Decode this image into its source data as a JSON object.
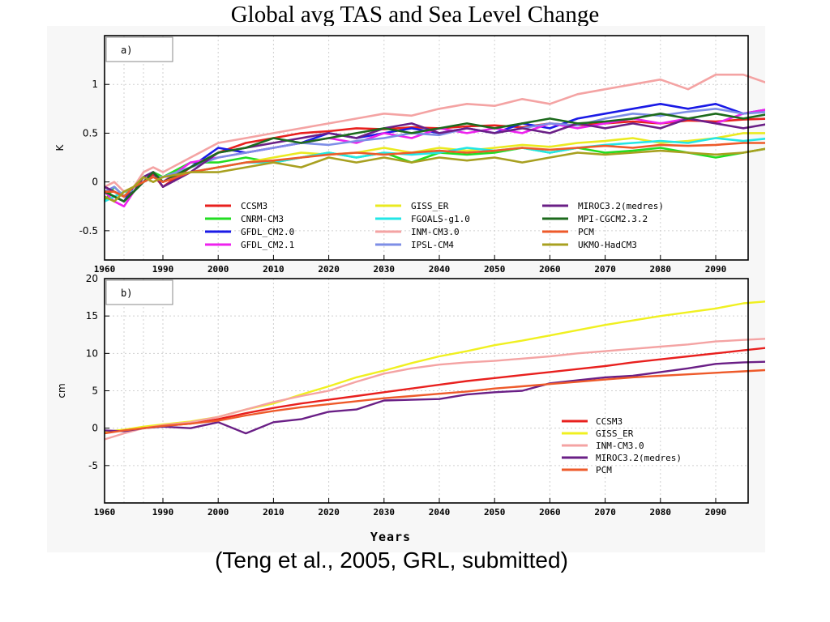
{
  "page": {
    "title": "Global avg TAS and Sea Level Change",
    "citation": "(Teng et al., 2005, GRL, submitted)"
  },
  "chart_data": [
    {
      "type": "line",
      "panel_label": "a)",
      "xlabel": "",
      "ylabel": "K",
      "xlim": [
        1960,
        2100
      ],
      "ylim": [
        -0.8,
        1.5
      ],
      "xticks": [
        "1960",
        "1990",
        "2000",
        "2010",
        "2020",
        "2030",
        "2040",
        "2050",
        "2060",
        "2070",
        "2080",
        "2090"
      ],
      "yticks": [
        "1",
        "0.5",
        "0",
        "-0.5"
      ],
      "grid": true,
      "legend_position": "bottom-center",
      "x": [
        1960,
        1965,
        1970,
        1975,
        1980,
        1985,
        1990,
        1995,
        2000,
        2005,
        2010,
        2015,
        2020,
        2025,
        2030,
        2035,
        2040,
        2045,
        2050,
        2055,
        2060,
        2065,
        2070,
        2075,
        2080,
        2085,
        2090,
        2095,
        2100
      ],
      "series": [
        {
          "name": "CCSM3",
          "color": "#e8201e",
          "values": [
            -0.05,
            -0.1,
            -0.15,
            -0.1,
            0.0,
            0.08,
            -0.05,
            0.15,
            0.3,
            0.4,
            0.45,
            0.5,
            0.52,
            0.55,
            0.54,
            0.56,
            0.55,
            0.57,
            0.58,
            0.56,
            0.6,
            0.58,
            0.6,
            0.62,
            0.6,
            0.63,
            0.62,
            0.64,
            0.65
          ]
        },
        {
          "name": "CNRM-CM3",
          "color": "#22dd22",
          "values": [
            -0.2,
            -0.05,
            -0.15,
            -0.05,
            0.05,
            0.1,
            0.05,
            0.2,
            0.2,
            0.25,
            0.2,
            0.25,
            0.3,
            0.25,
            0.3,
            0.2,
            0.3,
            0.28,
            0.3,
            0.35,
            0.3,
            0.35,
            0.3,
            0.32,
            0.35,
            0.3,
            0.25,
            0.3,
            0.35
          ]
        },
        {
          "name": "GFDL_CM2.0",
          "color": "#1a1ae6",
          "values": [
            -0.1,
            -0.15,
            -0.2,
            -0.05,
            0.05,
            0.1,
            0.0,
            0.15,
            0.35,
            0.3,
            0.35,
            0.4,
            0.5,
            0.45,
            0.5,
            0.55,
            0.5,
            0.55,
            0.5,
            0.6,
            0.55,
            0.65,
            0.7,
            0.75,
            0.8,
            0.75,
            0.8,
            0.7,
            0.75
          ]
        },
        {
          "name": "GFDL_CM2.1",
          "color": "#ee22ee",
          "values": [
            -0.1,
            -0.2,
            -0.25,
            -0.1,
            0.0,
            0.1,
            0.0,
            0.2,
            0.25,
            0.3,
            0.35,
            0.4,
            0.45,
            0.4,
            0.5,
            0.45,
            0.55,
            0.5,
            0.55,
            0.5,
            0.6,
            0.55,
            0.6,
            0.65,
            0.6,
            0.65,
            0.6,
            0.7,
            0.75
          ]
        },
        {
          "name": "GISS_ER",
          "color": "#eaea20",
          "values": [
            -0.1,
            -0.15,
            -0.1,
            -0.05,
            0.0,
            0.05,
            0.05,
            0.1,
            0.15,
            0.2,
            0.25,
            0.3,
            0.28,
            0.3,
            0.35,
            0.3,
            0.35,
            0.32,
            0.35,
            0.38,
            0.36,
            0.4,
            0.42,
            0.45,
            0.4,
            0.42,
            0.45,
            0.5,
            0.5
          ]
        },
        {
          "name": "FGOALS-g1.0",
          "color": "#22e6e6",
          "values": [
            -0.2,
            -0.15,
            -0.1,
            -0.1,
            0.0,
            0.05,
            0.05,
            0.1,
            0.15,
            0.2,
            0.2,
            0.25,
            0.3,
            0.25,
            0.3,
            0.28,
            0.3,
            0.35,
            0.32,
            0.35,
            0.3,
            0.35,
            0.38,
            0.4,
            0.42,
            0.4,
            0.45,
            0.42,
            0.45
          ]
        },
        {
          "name": "INM-CM3.0",
          "color": "#f4a3a3",
          "values": [
            -0.05,
            0.0,
            -0.1,
            -0.05,
            0.1,
            0.15,
            0.1,
            0.25,
            0.4,
            0.45,
            0.5,
            0.55,
            0.6,
            0.65,
            0.7,
            0.68,
            0.75,
            0.8,
            0.78,
            0.85,
            0.8,
            0.9,
            0.95,
            1.0,
            1.05,
            0.95,
            1.1,
            1.1,
            1.0
          ]
        },
        {
          "name": "IPSL-CM4",
          "color": "#7d8ee6",
          "values": [
            -0.1,
            -0.05,
            -0.15,
            -0.1,
            0.0,
            0.05,
            0.05,
            0.15,
            0.25,
            0.3,
            0.35,
            0.4,
            0.38,
            0.42,
            0.45,
            0.5,
            0.48,
            0.55,
            0.5,
            0.55,
            0.6,
            0.58,
            0.65,
            0.7,
            0.68,
            0.72,
            0.75,
            0.7,
            0.72
          ]
        },
        {
          "name": "MIROC3.2(medres)",
          "color": "#6a1f86",
          "values": [
            -0.05,
            -0.1,
            -0.15,
            -0.1,
            0.05,
            0.1,
            -0.05,
            0.1,
            0.3,
            0.35,
            0.4,
            0.45,
            0.5,
            0.45,
            0.55,
            0.6,
            0.5,
            0.55,
            0.5,
            0.55,
            0.5,
            0.6,
            0.55,
            0.6,
            0.55,
            0.65,
            0.6,
            0.55,
            0.6
          ]
        },
        {
          "name": "MPI-CGCM2.3.2",
          "color": "#1c6a1c",
          "values": [
            -0.1,
            -0.15,
            -0.2,
            -0.1,
            0.0,
            0.1,
            0.0,
            0.15,
            0.3,
            0.35,
            0.45,
            0.4,
            0.45,
            0.5,
            0.55,
            0.5,
            0.55,
            0.6,
            0.55,
            0.6,
            0.65,
            0.6,
            0.62,
            0.65,
            0.7,
            0.65,
            0.7,
            0.65,
            0.7
          ]
        },
        {
          "name": "PCM",
          "color": "#ee5a2a",
          "values": [
            -0.1,
            -0.1,
            -0.15,
            -0.05,
            0.0,
            0.05,
            0.0,
            0.1,
            0.15,
            0.2,
            0.22,
            0.25,
            0.28,
            0.3,
            0.28,
            0.3,
            0.32,
            0.3,
            0.32,
            0.35,
            0.33,
            0.35,
            0.37,
            0.35,
            0.38,
            0.37,
            0.38,
            0.4,
            0.4
          ]
        },
        {
          "name": "UKMO-HadCM3",
          "color": "#a8a020",
          "values": [
            -0.15,
            -0.2,
            -0.1,
            -0.05,
            0.05,
            0.0,
            0.05,
            0.1,
            0.1,
            0.15,
            0.2,
            0.15,
            0.25,
            0.2,
            0.25,
            0.2,
            0.25,
            0.22,
            0.25,
            0.2,
            0.25,
            0.3,
            0.28,
            0.3,
            0.32,
            0.3,
            0.28,
            0.3,
            0.35
          ]
        }
      ]
    },
    {
      "type": "line",
      "panel_label": "b)",
      "xlabel": "Years",
      "ylabel": "cm",
      "xlim": [
        1960,
        2100
      ],
      "ylim": [
        -10,
        20
      ],
      "xticks": [
        "1960",
        "1990",
        "2000",
        "2010",
        "2020",
        "2030",
        "2040",
        "2050",
        "2060",
        "2070",
        "2080",
        "2090"
      ],
      "yticks": [
        "20",
        "15",
        "10",
        "5",
        "0",
        "-5"
      ],
      "grid": true,
      "legend_position": "bottom-right",
      "x": [
        1960,
        1970,
        1980,
        1990,
        1995,
        2000,
        2005,
        2010,
        2015,
        2020,
        2025,
        2030,
        2035,
        2040,
        2045,
        2050,
        2055,
        2060,
        2065,
        2070,
        2075,
        2080,
        2085,
        2090,
        2095,
        2100
      ],
      "series": [
        {
          "name": "CCSM3",
          "color": "#e8201e",
          "values": [
            -0.5,
            -0.3,
            0.0,
            0.3,
            0.6,
            1.2,
            2.0,
            2.7,
            3.3,
            3.8,
            4.3,
            4.8,
            5.3,
            5.8,
            6.3,
            6.7,
            7.1,
            7.5,
            7.9,
            8.3,
            8.8,
            9.2,
            9.6,
            10.0,
            10.4,
            10.8
          ]
        },
        {
          "name": "GISS_ER",
          "color": "#f0f020",
          "values": [
            -0.5,
            -0.2,
            0.2,
            0.5,
            0.9,
            1.5,
            2.5,
            3.3,
            4.5,
            5.6,
            6.8,
            7.7,
            8.7,
            9.6,
            10.3,
            11.1,
            11.7,
            12.4,
            13.1,
            13.8,
            14.4,
            15.0,
            15.5,
            16.0,
            16.7,
            17.0
          ]
        },
        {
          "name": "INM-CM3.0",
          "color": "#f4a3a3",
          "values": [
            -1.5,
            -0.7,
            0.0,
            0.4,
            0.8,
            1.5,
            2.5,
            3.5,
            4.3,
            5.0,
            6.2,
            7.3,
            8.0,
            8.5,
            8.8,
            9.0,
            9.3,
            9.6,
            10.0,
            10.3,
            10.6,
            10.9,
            11.2,
            11.6,
            11.8,
            12.0
          ]
        },
        {
          "name": "MIROC3.2(medres)",
          "color": "#6a1f86",
          "values": [
            -0.3,
            -0.4,
            0.0,
            0.2,
            0.0,
            0.8,
            -0.7,
            0.8,
            1.2,
            2.2,
            2.5,
            3.7,
            3.8,
            3.9,
            4.5,
            4.8,
            5.0,
            6.0,
            6.4,
            6.8,
            7.0,
            7.5,
            8.0,
            8.6,
            8.8,
            8.9
          ]
        },
        {
          "name": "PCM",
          "color": "#ee5a2a",
          "values": [
            -0.7,
            -0.3,
            0.0,
            0.3,
            0.6,
            1.0,
            1.7,
            2.3,
            2.8,
            3.2,
            3.6,
            4.0,
            4.3,
            4.6,
            4.9,
            5.3,
            5.6,
            5.9,
            6.2,
            6.5,
            6.8,
            7.0,
            7.2,
            7.4,
            7.6,
            7.8
          ]
        }
      ]
    }
  ]
}
